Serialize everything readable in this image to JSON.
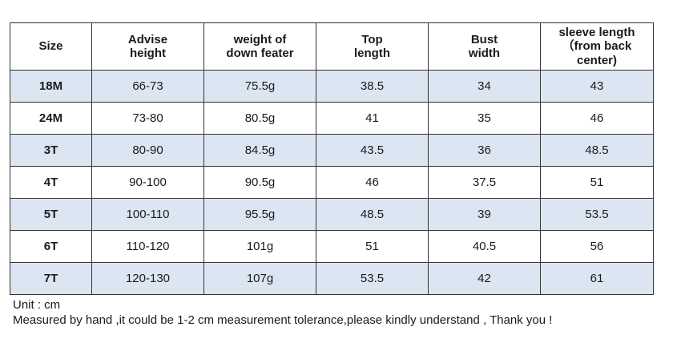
{
  "table": {
    "headers": [
      "Size",
      "Advise\nheight",
      "weight of\ndown feater",
      "Top\nlength",
      "Bust\nwidth",
      "sleeve length\n（from back\ncenter)"
    ],
    "rows": [
      [
        "18M",
        "66-73",
        "75.5g",
        "38.5",
        "34",
        "43"
      ],
      [
        "24M",
        "73-80",
        "80.5g",
        "41",
        "35",
        "46"
      ],
      [
        "3T",
        "80-90",
        "84.5g",
        "43.5",
        "36",
        "48.5"
      ],
      [
        "4T",
        "90-100",
        "90.5g",
        "46",
        "37.5",
        "51"
      ],
      [
        "5T",
        "100-110",
        "95.5g",
        "48.5",
        "39",
        "53.5"
      ],
      [
        "6T",
        "110-120",
        "101g",
        "51",
        "40.5",
        "56"
      ],
      [
        "7T",
        "120-130",
        "107g",
        "53.5",
        "42",
        "61"
      ]
    ],
    "colors": {
      "shaded_row": "#dce6f2",
      "plain_row": "#ffffff",
      "border": "#333333"
    }
  },
  "notes": {
    "unit": "Unit : cm",
    "disclaimer": "Measured by hand ,it could be 1-2 cm measurement tolerance,please kindly understand , Thank you !"
  }
}
